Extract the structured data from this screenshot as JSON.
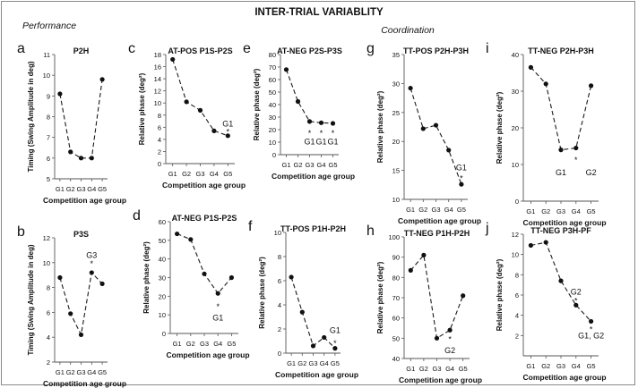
{
  "figure": {
    "title": "INTER-TRIAL VARIABLITY",
    "section_left": "Performance",
    "section_right": "Coordination",
    "xlabel": "Competition age group"
  },
  "chart_data": [
    {
      "type": "line",
      "panel": "a",
      "title": "P2H",
      "ylabel": "Timing (Swing Amplitude in deg)",
      "categories": [
        "G1",
        "G2",
        "G3",
        "G4",
        "G5"
      ],
      "values": [
        9.1,
        6.3,
        6.0,
        6.0,
        9.8
      ],
      "ylim": [
        5,
        11
      ],
      "yticks": [
        5,
        6,
        7,
        8,
        9,
        10,
        11
      ],
      "annotations": []
    },
    {
      "type": "line",
      "panel": "b",
      "title": "P3S",
      "ylabel": "Timing (Swing Amplitude in deg)",
      "categories": [
        "G1",
        "G2",
        "G3",
        "G4",
        "G5"
      ],
      "values": [
        8.8,
        5.9,
        4.2,
        9.2,
        8.3
      ],
      "ylim": [
        2,
        12
      ],
      "yticks": [
        2,
        4,
        6,
        8,
        10,
        12
      ],
      "annotations": [
        {
          "text": "*",
          "x": "G4",
          "y": 10.0
        },
        {
          "text": "G3",
          "x": "G4",
          "y": 10.6
        }
      ]
    },
    {
      "type": "line",
      "panel": "c",
      "title": "AT-POS P1S-P2S",
      "ylabel": "Relative phase (deg²)",
      "categories": [
        "G1",
        "G2",
        "G3",
        "G4",
        "G5"
      ],
      "values": [
        17.2,
        10.2,
        8.8,
        5.4,
        4.6
      ],
      "ylim": [
        0,
        18
      ],
      "yticks": [
        0,
        2,
        4,
        6,
        8,
        10,
        12,
        14,
        16,
        18
      ],
      "annotations": [
        {
          "text": "*",
          "x": "G5",
          "y": 5.4
        },
        {
          "text": "G1",
          "x": "G5",
          "y": 6.6
        }
      ]
    },
    {
      "type": "line",
      "panel": "d",
      "title": "AT-NEG P1S-P2S",
      "ylabel": "Relative phase (deg²)",
      "categories": [
        "G1",
        "G2",
        "G3",
        "G4",
        "G5"
      ],
      "values": [
        53.5,
        50.5,
        32.0,
        21.5,
        30.0
      ],
      "ylim": [
        0,
        60
      ],
      "yticks": [
        0,
        10,
        20,
        30,
        40,
        50,
        60
      ],
      "annotations": [
        {
          "text": "*",
          "x": "G4",
          "y": 15.0
        },
        {
          "text": "G1",
          "x": "G4",
          "y": 8.5
        }
      ]
    },
    {
      "type": "line",
      "panel": "e",
      "title": "AT-NEG P2S-P3S",
      "ylabel": "Relative phase (deg²)",
      "categories": [
        "G1",
        "G2",
        "G3",
        "G4",
        "G5"
      ],
      "values": [
        68,
        42.5,
        26.5,
        25.5,
        25.0
      ],
      "ylim": [
        0,
        80
      ],
      "yticks": [
        0,
        10,
        20,
        30,
        40,
        50,
        60,
        70,
        80
      ],
      "annotations": [
        {
          "text": "*",
          "x": "G3",
          "y": 18.0
        },
        {
          "text": "*",
          "x": "G4",
          "y": 18.0
        },
        {
          "text": "*",
          "x": "G5",
          "y": 18.0
        },
        {
          "text": "G1",
          "x": "G3",
          "y": 10.5
        },
        {
          "text": "G1",
          "x": "G4",
          "y": 10.5
        },
        {
          "text": "G1",
          "x": "G5",
          "y": 10.5
        }
      ]
    },
    {
      "type": "line",
      "panel": "f",
      "title": "TT-POS P1H-P2H",
      "ylabel": "Relative phase (deg²)",
      "categories": [
        "G1",
        "G2",
        "G3",
        "G4",
        "G5"
      ],
      "values": [
        6.3,
        3.4,
        0.6,
        1.3,
        0.4
      ],
      "ylim": [
        0,
        10
      ],
      "yticks": [
        0,
        2,
        4,
        6,
        8,
        10
      ],
      "annotations": [
        {
          "text": "G1",
          "x": "G5",
          "y": 1.9
        },
        {
          "text": "*",
          "x": "G5",
          "y": 0.9
        }
      ]
    },
    {
      "type": "line",
      "panel": "g",
      "title": "TT-POS P2H-P3H",
      "ylabel": "Relative phase (deg²)",
      "categories": [
        "G1",
        "G2",
        "G3",
        "G4",
        "G5"
      ],
      "values": [
        29.2,
        22.2,
        22.8,
        18.5,
        12.6
      ],
      "ylim": [
        10,
        35
      ],
      "yticks": [
        10,
        15,
        20,
        25,
        30,
        35
      ],
      "annotations": [
        {
          "text": "G1",
          "x": "G5",
          "y": 15.5
        },
        {
          "text": "*",
          "x": "G5",
          "y": 13.8
        }
      ]
    },
    {
      "type": "line",
      "panel": "h",
      "title": "TT-NEG P1H-P2H",
      "ylabel": "Relative phase (deg²)",
      "categories": [
        "G1",
        "G2",
        "G3",
        "G4",
        "G5"
      ],
      "values": [
        83.5,
        91.0,
        50.0,
        54.0,
        71.0
      ],
      "ylim": [
        40,
        100
      ],
      "yticks": [
        40,
        50,
        60,
        70,
        80,
        90,
        100
      ],
      "annotations": [
        {
          "text": "*",
          "x": "G4",
          "y": 50.0
        },
        {
          "text": "G2",
          "x": "G4",
          "y": 44.0
        }
      ]
    },
    {
      "type": "line",
      "panel": "i",
      "title": "TT-NEG P2H-P3H",
      "ylabel": "Relative phase (deg²)",
      "categories": [
        "G1",
        "G2",
        "G3",
        "G4",
        "G5"
      ],
      "values": [
        36.5,
        32.0,
        14.0,
        14.5,
        31.5
      ],
      "ylim": [
        0,
        40
      ],
      "yticks": [
        0,
        10,
        20,
        30,
        40
      ],
      "annotations": [
        {
          "text": "*",
          "x": "G4",
          "y": 11.5
        },
        {
          "text": "G1",
          "x": "G3",
          "y": 7.8
        },
        {
          "text": "G2",
          "x": "G5",
          "y": 7.8
        }
      ]
    },
    {
      "type": "line",
      "panel": "j",
      "title": "TT-NEG P3H-PF",
      "ylabel": "Relative phase (deg²)",
      "categories": [
        "G1",
        "G2",
        "G3",
        "G4",
        "G5"
      ],
      "values": [
        10.9,
        11.2,
        7.4,
        5.0,
        3.4
      ],
      "ylim": [
        0,
        12
      ],
      "yticks": [
        2,
        4,
        6,
        8,
        10,
        12
      ],
      "annotations": [
        {
          "text": "G2",
          "x": "G4",
          "y": 6.3
        },
        {
          "text": "*",
          "x": "G4",
          "y": 5.5
        },
        {
          "text": "*",
          "x": "G5",
          "y": 2.7
        },
        {
          "text": "G1, G2",
          "x": "G5",
          "y": 2.0
        }
      ]
    }
  ]
}
